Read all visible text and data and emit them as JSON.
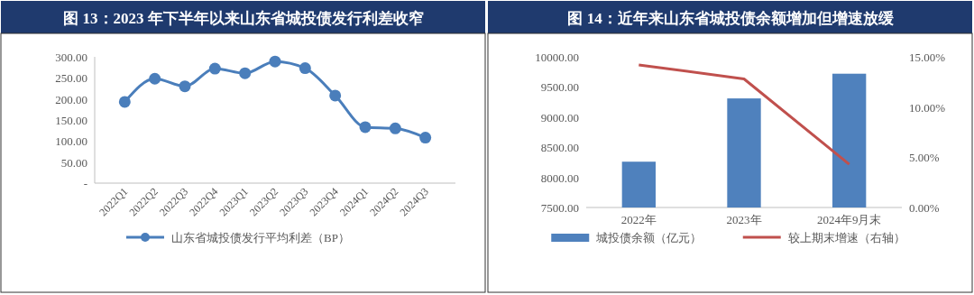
{
  "chart_data": [
    {
      "type": "line",
      "title": "图 13：2023 年下半年以来山东省城投债发行利差收窄",
      "categories": [
        "2022Q1",
        "2022Q2",
        "2022Q3",
        "2022Q4",
        "2023Q1",
        "2023Q2",
        "2023Q3",
        "2023Q4",
        "2024Q1",
        "2024Q2",
        "2024Q3"
      ],
      "series": [
        {
          "name": "山东省城投债发行平均利差（BP）",
          "color": "#4a7ebb",
          "values": [
            193,
            248,
            230,
            272,
            261,
            289,
            273,
            208,
            133,
            130,
            108
          ]
        }
      ],
      "ylim": [
        0,
        300
      ],
      "yticks": [
        {
          "value": 0,
          "label": "-"
        },
        {
          "value": 50,
          "label": "50.00"
        },
        {
          "value": 100,
          "label": "100.00"
        },
        {
          "value": 150,
          "label": "150.00"
        },
        {
          "value": 200,
          "label": "200.00"
        },
        {
          "value": 250,
          "label": "250.00"
        },
        {
          "value": 300,
          "label": "300.00"
        }
      ],
      "marker": "circle",
      "legend": "bottom",
      "grid": false
    },
    {
      "type": "bar",
      "title": "图 14：近年来山东省城投债余额增加但增速放缓",
      "categories": [
        "2022年",
        "2023年",
        "2024年9月末"
      ],
      "series": [
        {
          "name": "城投债余额（亿元）",
          "color": "#4f81bd",
          "values": [
            8260,
            9310,
            9720
          ]
        },
        {
          "name": "较上期末增速（右轴）",
          "type": "line",
          "axis": "y2",
          "color": "#c0504d",
          "values": [
            14.2,
            12.8,
            4.3
          ]
        }
      ],
      "ylim": [
        7500,
        10000
      ],
      "yticks": [
        {
          "value": 7500,
          "label": "7500.00"
        },
        {
          "value": 8000,
          "label": "8000.00"
        },
        {
          "value": 8500,
          "label": "8500.00"
        },
        {
          "value": 9000,
          "label": "9000.00"
        },
        {
          "value": 9500,
          "label": "9500.00"
        },
        {
          "value": 10000,
          "label": "10000.00"
        }
      ],
      "y2lim": [
        0,
        15
      ],
      "y2ticks": [
        {
          "value": 0,
          "label": "0.00%"
        },
        {
          "value": 5,
          "label": "5.00%"
        },
        {
          "value": 10,
          "label": "10.00%"
        },
        {
          "value": 15,
          "label": "15.00%"
        }
      ],
      "marker": "none",
      "legend": "bottom",
      "grid": false
    }
  ]
}
